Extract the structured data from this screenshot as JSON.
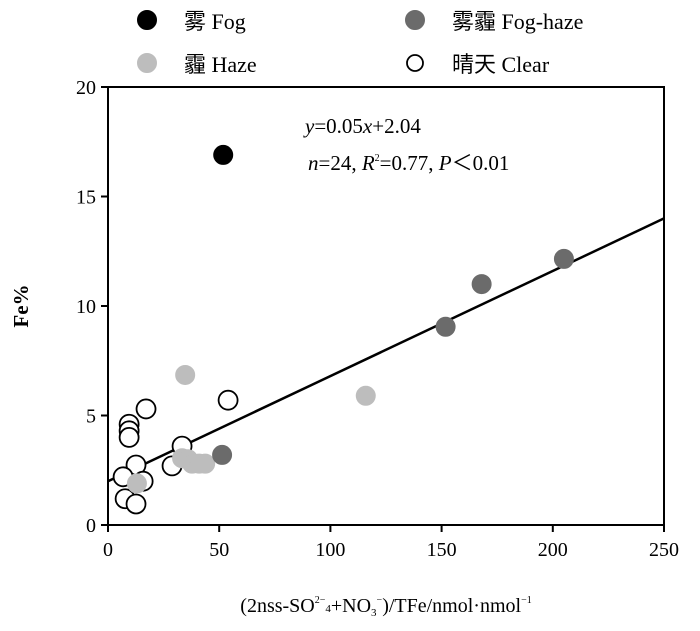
{
  "chart_data": {
    "type": "scatter",
    "title": "",
    "xlabel": "(2nss-SO₂⁻₄+NO₃⁻)/TFe/nmol·nmol⁻¹",
    "xlabel_parts": [
      "(2nss-SO",
      "2−",
      "4",
      "+NO",
      "3",
      "−",
      ")/TFe/nmol·nmol",
      "−1"
    ],
    "ylabel": "Fe%",
    "xlim": [
      0,
      250
    ],
    "ylim": [
      0,
      20
    ],
    "xticks": [
      "0",
      "50",
      "100",
      "150",
      "200",
      "250"
    ],
    "yticks": [
      "0",
      "5",
      "10",
      "15",
      "20"
    ],
    "grid": false,
    "legend_position": "top",
    "equation": "y=0.05x+2.04",
    "stats": "n=24, R²=0.77, P＜0.01",
    "stats_parts": [
      "n",
      "=24, ",
      "R",
      "2",
      "=0.77, ",
      "P",
      "＜0.01"
    ],
    "equation_parts": [
      "y",
      "=0.05",
      "x",
      "+2.04"
    ],
    "fit_line": {
      "x": [
        0,
        250
      ],
      "y": [
        2.0,
        14.0
      ]
    },
    "series": [
      {
        "name": "雾 Fog",
        "fill": "#000000",
        "stroke": "#000000",
        "points": [
          [
            51.8,
            16.9
          ]
        ]
      },
      {
        "name": "雾霾 Fog-haze",
        "fill": "#6b6b6b",
        "stroke": "#6b6b6b",
        "points": [
          [
            51.3,
            3.2
          ],
          [
            151.8,
            9.05
          ],
          [
            168,
            11.0
          ],
          [
            205,
            12.15
          ]
        ]
      },
      {
        "name": "霾 Haze",
        "fill": "#bdbdbd",
        "stroke": "#bdbdbd",
        "points": [
          [
            34.7,
            6.85
          ],
          [
            13,
            1.9
          ],
          [
            33.3,
            3.05
          ],
          [
            36,
            3.0
          ],
          [
            37.8,
            2.8
          ],
          [
            41,
            2.8
          ],
          [
            43.7,
            2.8
          ],
          [
            115.9,
            5.9
          ]
        ]
      },
      {
        "name": "晴天 Clear",
        "fill": "#ffffff",
        "stroke": "#000000",
        "points": [
          [
            17.1,
            5.3
          ],
          [
            9.5,
            4.6
          ],
          [
            9.5,
            4.3
          ],
          [
            9.5,
            4.0
          ],
          [
            54,
            5.7
          ],
          [
            33.3,
            3.6
          ],
          [
            12.6,
            2.74
          ],
          [
            6.8,
            2.2
          ],
          [
            15.8,
            2.0
          ],
          [
            28.8,
            2.7
          ],
          [
            7.7,
            1.2
          ],
          [
            12.6,
            0.96
          ]
        ]
      }
    ]
  }
}
